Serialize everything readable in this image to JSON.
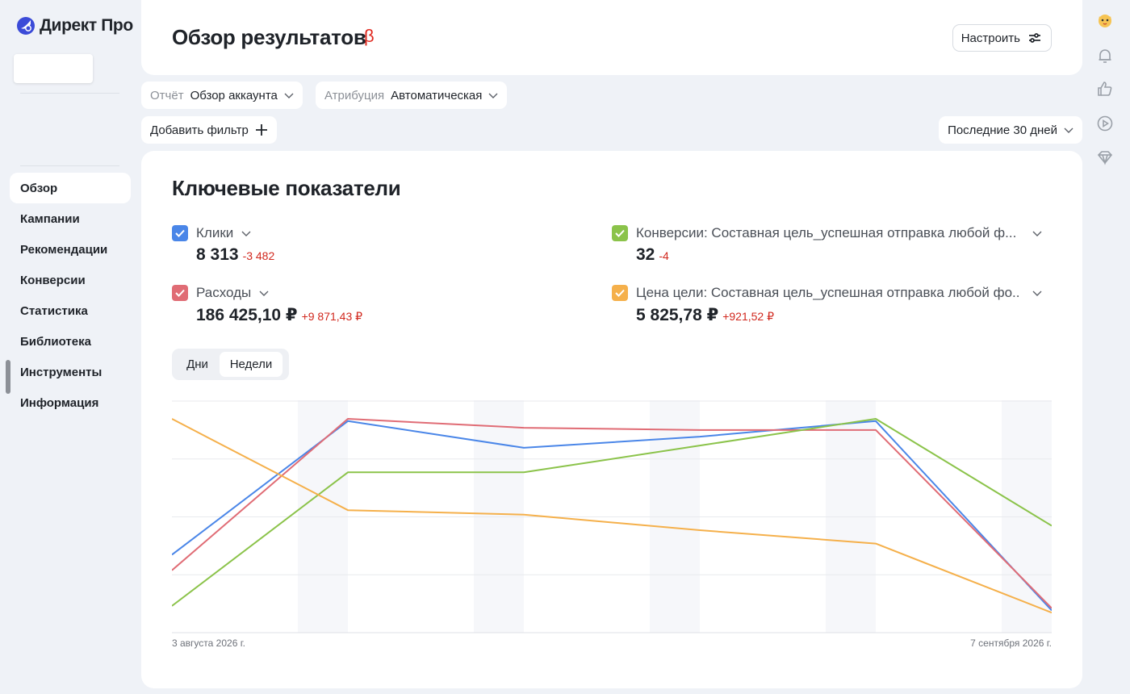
{
  "sidebar": {
    "brand": "Директ Про",
    "nav": [
      {
        "label": "Обзор",
        "active": true
      },
      {
        "label": "Кампании"
      },
      {
        "label": "Рекомендации"
      },
      {
        "label": "Конверсии"
      },
      {
        "label": "Статистика"
      },
      {
        "label": "Библиотека"
      },
      {
        "label": "Инструменты"
      },
      {
        "label": "Информация"
      }
    ]
  },
  "rail": {
    "icons": [
      "avatar-cat-icon",
      "bell-icon",
      "thumbs-up-icon",
      "play-circle-icon",
      "diamond-icon"
    ]
  },
  "header": {
    "title": "Обзор результатов",
    "beta": "β",
    "configure_label": "Настроить"
  },
  "filters": {
    "report_label": "Отчёт",
    "report_value": "Обзор аккаунта",
    "attribution_label": "Атрибуция",
    "attribution_value": "Автоматическая",
    "add_filter_label": "Добавить фильтр",
    "period_value": "Последние 30 дней"
  },
  "metrics": {
    "title": "Ключевые показатели",
    "items": [
      {
        "label": "Клики",
        "value": "8 313",
        "delta": "-3 482",
        "color": "#4a86e8"
      },
      {
        "label": "Расходы",
        "value": "186 425,10 ₽",
        "delta": "+9 871,43 ₽",
        "color": "#e06c75"
      },
      {
        "label": "Конверсии: Составная цель_успешная отправка любой ф...",
        "value": "32",
        "delta": "-4",
        "color": "#8bc34a"
      },
      {
        "label": "Цена цели: Составная цель_успешная отправка любой фо...",
        "value": "5 825,78 ₽",
        "delta": "+921,52 ₽",
        "color": "#f5b04b"
      }
    ]
  },
  "granularity": {
    "options": [
      "Дни",
      "Недели"
    ],
    "selected": "Недели"
  },
  "chart_data": {
    "type": "line",
    "x_start_label": "3 августа 2026 г.",
    "x_end_label": "7 сентября 2026 г.",
    "x_count": 6,
    "ylim": [
      0,
      100
    ],
    "grid": true,
    "series": [
      {
        "name": "Клики",
        "color": "#4a86e8",
        "values": [
          35,
          95,
          83,
          88,
          95,
          10
        ]
      },
      {
        "name": "Расходы",
        "color": "#e06c75",
        "values": [
          28,
          96,
          92,
          91,
          91,
          11
        ]
      },
      {
        "name": "Конверсии",
        "color": "#8bc34a",
        "values": [
          12,
          72,
          72,
          84,
          96,
          48
        ]
      },
      {
        "name": "Цена цели",
        "color": "#f5b04b",
        "values": [
          96,
          55,
          53,
          46,
          40,
          9
        ]
      }
    ]
  }
}
